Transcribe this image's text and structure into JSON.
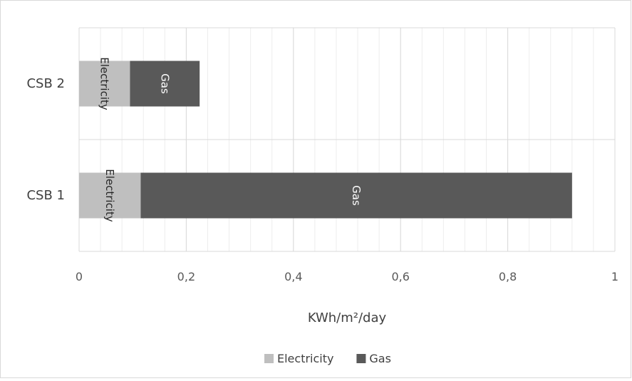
{
  "chart_data": {
    "type": "bar",
    "orientation": "horizontal",
    "stacked": true,
    "title": "",
    "xlabel": "KWh/m²/day",
    "ylabel": "",
    "categories": [
      "CSB 2",
      "CSB 1"
    ],
    "series": [
      {
        "name": "Electricity",
        "values": [
          0.095,
          0.115
        ],
        "color": "#bfbfbf",
        "label_color": "#262626"
      },
      {
        "name": "Gas",
        "values": [
          0.13,
          0.805
        ],
        "color": "#595959",
        "label_color": "#ffffff"
      }
    ],
    "xlim": [
      0,
      1
    ],
    "xticks": [
      0,
      0.2,
      0.4,
      0.6,
      0.8,
      1
    ],
    "xtick_labels": [
      "0",
      "0,2",
      "0,4",
      "0,6",
      "0,8",
      "1"
    ],
    "minor_gridlines_per_major": 5,
    "grid": true,
    "legend": {
      "position": "bottom",
      "entries": [
        "Electricity",
        "Gas"
      ]
    },
    "data_labels": "series-name-vertical"
  }
}
